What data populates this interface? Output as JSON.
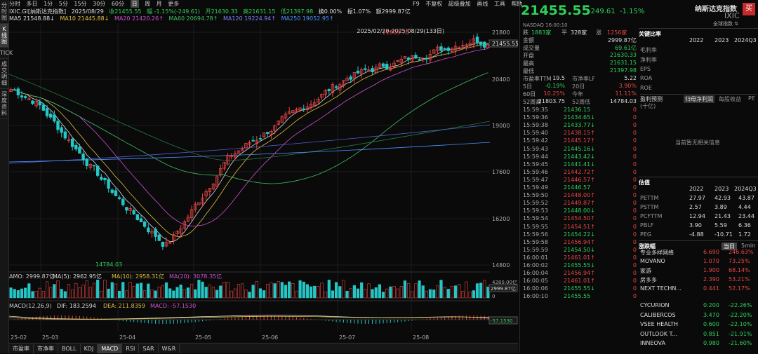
{
  "sidebar": {
    "items": [
      "分时图",
      "K线图",
      "TICK",
      "成交明细",
      "深度资料"
    ]
  },
  "periods": [
    "分时",
    "多日",
    "1分",
    "5分",
    "15分",
    "30分",
    "60分",
    "日",
    "周",
    "月",
    "更多"
  ],
  "topright": [
    "F9",
    "不复权",
    "超级叠加",
    "画线",
    "工具",
    "帮助"
  ],
  "quote": {
    "title": "IXIC.GI[纳斯达克指数]",
    "date": "2025/08/29",
    "close": "收21455.55",
    "amp": "幅 -1.15%(-249.61)",
    "high": "开21630.33",
    "low": "高21631.15",
    "last": "低21397.98",
    "turn": "换0.00%",
    "vol": "振1.07%",
    "amt": "额2999.87亿"
  },
  "ma": {
    "ma5": "MA5 21548.88↓",
    "ma10": "MA10 21445.88↓",
    "ma20": "MA20 21420.26↑",
    "ma60": "MA60 20694.78↑",
    "ma120": "MA120 19224.94↑",
    "ma250": "MA250 19052.95↑"
  },
  "chart": {
    "range_label": "2025/02/20-2025/08/29(133日)",
    "max_label": "21803.75",
    "min_label": "14784.03",
    "last_price": "21455.55",
    "yticks": [
      "21800",
      "20400",
      "19000",
      "17600",
      "16200",
      "14800"
    ]
  },
  "amo": {
    "label": "AMO: 2999.87亿",
    "ma5": "MA(5): 2962.95亿",
    "ma10": "MA(10): 2958.31亿",
    "ma20": "MA(20): 3078.35亿",
    "ytop": "4280.00亿",
    "ycur": "2999.87亿",
    "yzero": "0"
  },
  "macd": {
    "label": "MACD(12,26,9)",
    "dif": "DIF: 183.2594",
    "dea": "DEA: 211.8359",
    "macd": "MACD: -57.1530",
    "ycur": "-57.1530"
  },
  "xdates": [
    "25-02",
    "25-03",
    "25-04",
    "25-05",
    "25-06",
    "25-07",
    "25-08"
  ],
  "bottom_tabs": [
    "市盈率",
    "市净率",
    "BOLL",
    "KDJ",
    "MACD",
    "RSI",
    "SAR",
    "W&R"
  ],
  "price": {
    "big": "21455.55",
    "chg": "-249.61",
    "pct": "-1.15%",
    "name": "纳斯达克指数",
    "code": "IXIC",
    "buy": "买",
    "switch": "全球指数 ⇅",
    "sub": "NASDAQ 16:00:10"
  },
  "stats": [
    [
      "跌",
      "1883家",
      "平",
      "328家",
      "涨",
      "1256家"
    ],
    [
      "金额",
      "2999.87亿"
    ],
    [
      "成交量",
      "69.61亿"
    ],
    [
      "开盘",
      "21630.33"
    ],
    [
      "最高",
      "21631.15"
    ],
    [
      "最低",
      "21397.98"
    ],
    [
      "市盈率TTM",
      "19.5",
      "市净率LF",
      "5.22"
    ],
    [
      "5日",
      "-0.19%",
      "20日",
      "3.90%"
    ],
    [
      "60日",
      "10.25%",
      "今年",
      "11.11%"
    ],
    [
      "52周高",
      "21803.75",
      "52周低",
      "14784.03"
    ]
  ],
  "ticks": [
    [
      "15:59:35",
      "21436.15",
      "0"
    ],
    [
      "15:59:36",
      "21434.65↓",
      "0"
    ],
    [
      "15:59:38",
      "21433.77↓",
      "0"
    ],
    [
      "15:59:40",
      "21438.15↑",
      "0"
    ],
    [
      "15:59:42",
      "21445.17↑",
      "0"
    ],
    [
      "15:59:43",
      "21445.16↓",
      "0"
    ],
    [
      "15:59:44",
      "21443.42↓",
      "0"
    ],
    [
      "15:59:45",
      "21441.41↓",
      "0"
    ],
    [
      "15:59:46",
      "21442.72↑",
      "0"
    ],
    [
      "15:59:47",
      "21446.57↑",
      "0"
    ],
    [
      "15:59:49",
      "21446.57",
      "0"
    ],
    [
      "15:59:50",
      "21448.00↑",
      "0"
    ],
    [
      "15:59:52",
      "21449.87↑",
      "0"
    ],
    [
      "15:59:53",
      "21448.00↓",
      "0"
    ],
    [
      "15:59:54",
      "21454.50↑",
      "0"
    ],
    [
      "15:59:55",
      "21454.51↑",
      "0"
    ],
    [
      "15:59:56",
      "21454.22↓",
      "0"
    ],
    [
      "15:59:58",
      "21456.94↑",
      "0"
    ],
    [
      "15:59:59",
      "21454.50↓",
      "0"
    ],
    [
      "16:00:01",
      "21461.01↑",
      "0"
    ],
    [
      "16:00:02",
      "21455.55↓",
      "0"
    ],
    [
      "16:00:04",
      "21456.94↑",
      "0"
    ],
    [
      "16:00:05",
      "21461.01↑",
      "0"
    ],
    [
      "16:00:06",
      "21455.55↓",
      "0"
    ],
    [
      "16:00:10",
      "21455.55",
      "0"
    ]
  ],
  "fin": {
    "title": "关键比率",
    "years": [
      "2022",
      "2023",
      "2024Q3"
    ],
    "rows": [
      "毛利率",
      "净利率",
      "EPS",
      "ROA",
      "ROE"
    ],
    "tabs": [
      "盈利预测",
      "归母净利润",
      "每股收益",
      "PE"
    ],
    "unit": "(十亿)",
    "empty": "当前暂无相关信息",
    "val_title": "估值",
    "val_years": [
      "2022",
      "2023",
      "2024Q3"
    ],
    "val_rows": [
      [
        "PETTM",
        "27.97",
        "42.93",
        "43.87"
      ],
      [
        "PSTTM",
        "2.57",
        "3.89",
        "4.44"
      ],
      [
        "PCFTTM",
        "12.94",
        "21.43",
        "23.44"
      ],
      [
        "PBLF",
        "3.90",
        "5.59",
        "6.36"
      ],
      [
        "PEG",
        "-4.88",
        "-10.71",
        "1.72"
      ]
    ],
    "rank_title": "涨跌幅",
    "rank_tabs": [
      "当日",
      "5min"
    ],
    "rank_rows": [
      [
        "专业多样网络",
        "6.690",
        "246.63%"
      ],
      [
        "MOVANO",
        "1.070",
        "73.25%"
      ],
      [
        "家游",
        "1.900",
        "68.14%"
      ],
      [
        "房多多",
        "2.390",
        "53.21%"
      ],
      [
        "NEXT TECHN...",
        "0.441",
        "52.17%"
      ]
    ],
    "fall_rows": [
      [
        "CYCURION",
        "0.200",
        "-22.26%"
      ],
      [
        "CALIBERCOS",
        "3.470",
        "-22.20%"
      ],
      [
        "VSEE HEALTH",
        "0.600",
        "-22.10%"
      ],
      [
        "OUTLOOK T...",
        "0.851",
        "-21.91%"
      ],
      [
        "INNEOVA",
        "0.980",
        "-21.60%"
      ]
    ]
  }
}
